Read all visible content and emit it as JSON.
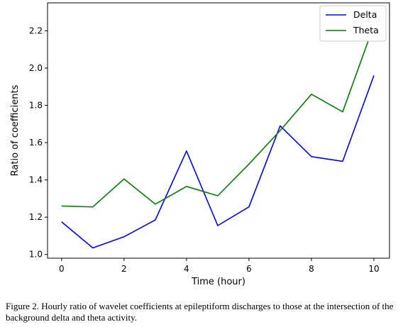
{
  "chart_data": {
    "type": "line",
    "xlabel": "Time (hour)",
    "ylabel": "Ratio of coefficients",
    "xlim": [
      -0.45,
      10.5
    ],
    "ylim": [
      0.98,
      2.35
    ],
    "xticks": [
      0,
      2,
      4,
      6,
      8,
      10
    ],
    "xtick_labels": [
      "0",
      "2",
      "4",
      "6",
      "8",
      "10"
    ],
    "yticks": [
      1.0,
      1.2,
      1.4,
      1.6,
      1.8,
      2.0,
      2.2
    ],
    "ytick_labels": [
      "1.0",
      "1.2",
      "1.4",
      "1.6",
      "1.8",
      "2.0",
      "2.2"
    ],
    "grid": false,
    "legend_position": "top-right",
    "x": [
      0,
      1,
      2,
      3,
      4,
      5,
      6,
      7,
      8,
      9,
      10
    ],
    "series": [
      {
        "name": "Delta",
        "color": "#0000ff",
        "values": [
          1.175,
          1.035,
          1.095,
          1.185,
          1.555,
          1.155,
          1.255,
          1.69,
          1.525,
          1.5,
          1.96
        ]
      },
      {
        "name": "Theta",
        "color": "#008000",
        "values": [
          1.26,
          1.255,
          1.405,
          1.27,
          1.365,
          1.315,
          1.485,
          1.665,
          1.86,
          1.765,
          2.23
        ]
      }
    ]
  },
  "caption": "Figure 2. Hourly ratio of wavelet coefficients at epileptiform discharges to those at the intersection of the background delta and theta activity."
}
